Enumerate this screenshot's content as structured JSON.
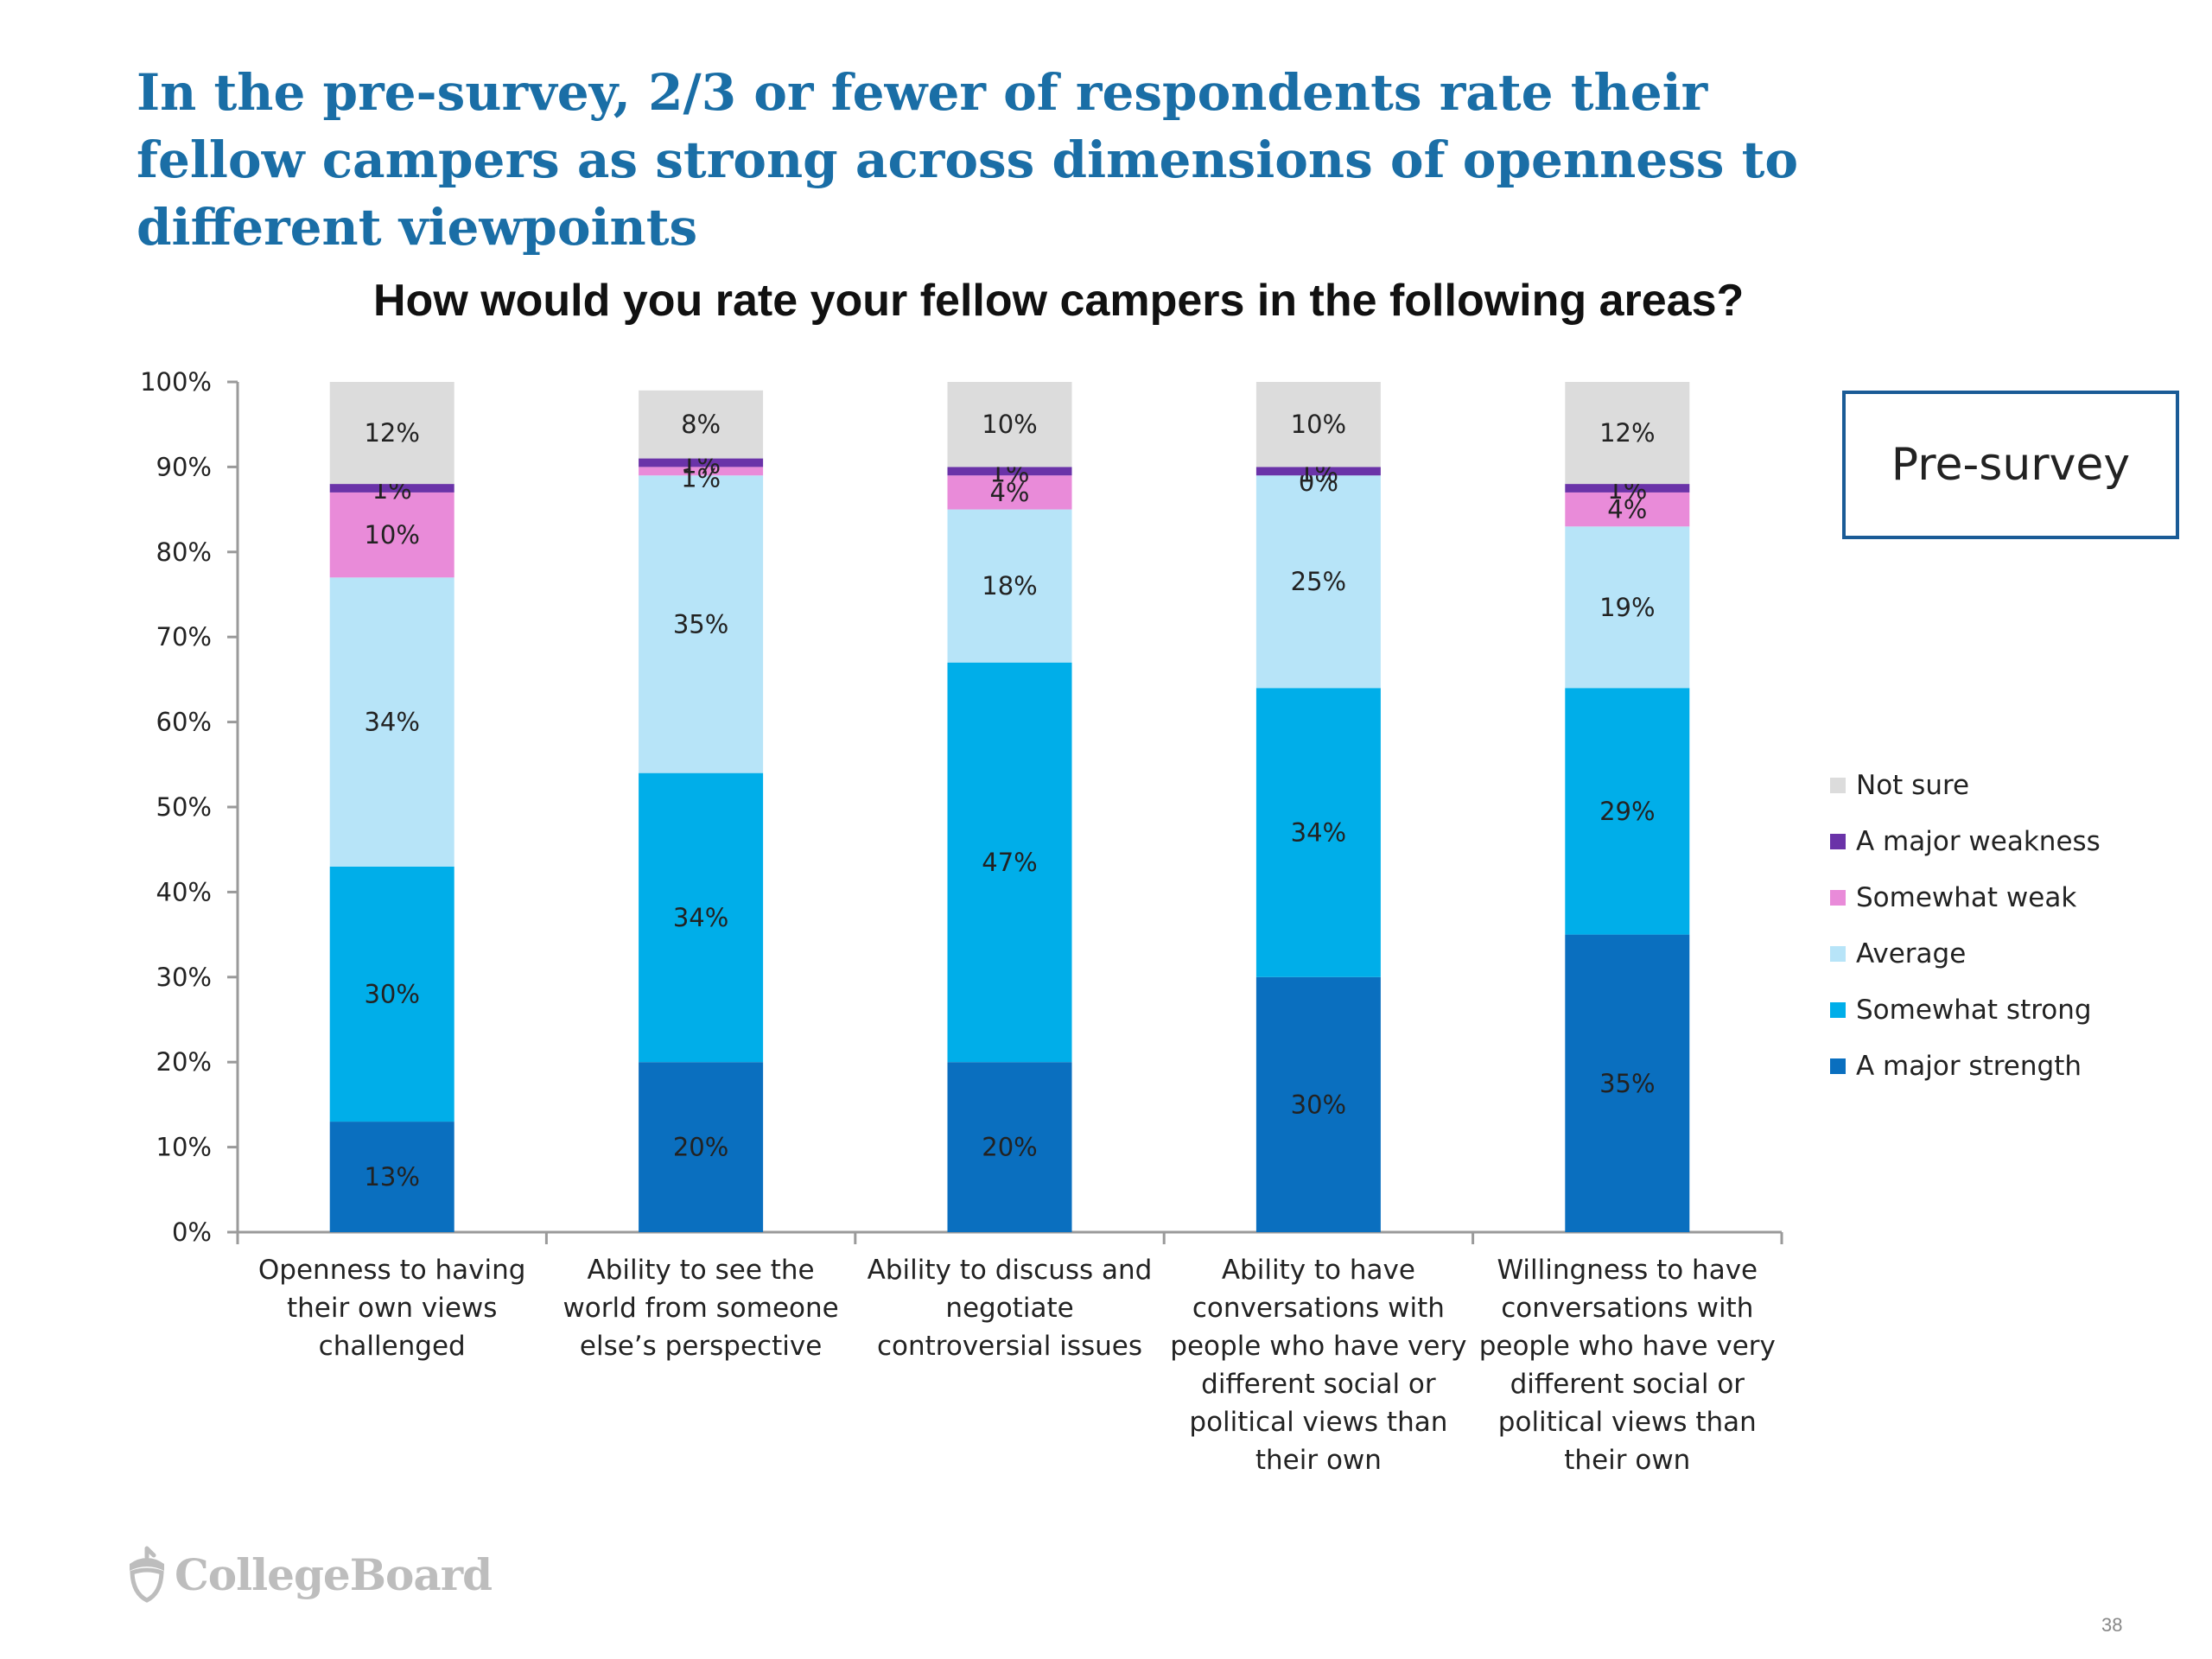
{
  "headline": "In the pre-survey, 2/3 or fewer of respondents rate their fellow campers as strong across dimensions of openness to different viewpoints",
  "badge": "Pre-survey",
  "logo": "CollegeBoard",
  "logo_icon": "acorn-icon",
  "page_number": "38",
  "chart_data": {
    "type": "bar",
    "stacked": true,
    "title": "How would you rate your fellow campers in the following areas?",
    "xlabel": "",
    "ylabel": "",
    "ylim": [
      0,
      100
    ],
    "yticks": [
      "0%",
      "10%",
      "20%",
      "30%",
      "40%",
      "50%",
      "60%",
      "70%",
      "80%",
      "90%",
      "100%"
    ],
    "legend_position": "right",
    "grid": false,
    "categories": [
      "Openness to having their own views challenged",
      "Ability to see the world from someone else’s perspective",
      "Ability to discuss and negotiate controversial issues",
      "Ability to have conversations with people who have very different social or political views than their own",
      "Willingness to have conversations with people who have very different social or political views than their own"
    ],
    "series": [
      {
        "name": "A major strength",
        "color": "#0a6fbf",
        "values": [
          13,
          20,
          20,
          30,
          35
        ],
        "labels": [
          "13%",
          "20%",
          "20%",
          "30%",
          "35%"
        ]
      },
      {
        "name": "Somewhat strong",
        "color": "#00aee9",
        "values": [
          30,
          34,
          47,
          34,
          29
        ],
        "labels": [
          "30%",
          "34%",
          "47%",
          "34%",
          "29%"
        ]
      },
      {
        "name": "Average",
        "color": "#b7e4f8",
        "values": [
          34,
          35,
          18,
          25,
          19
        ],
        "labels": [
          "34%",
          "35%",
          "18%",
          "25%",
          "19%"
        ]
      },
      {
        "name": "Somewhat weak",
        "color": "#e98bd9",
        "values": [
          10,
          1,
          4,
          0,
          4
        ],
        "labels": [
          "10%",
          "1%",
          "4%",
          "0%",
          "4%"
        ]
      },
      {
        "name": "A major weakness",
        "color": "#6a33a8",
        "values": [
          1,
          1,
          1,
          1,
          1
        ],
        "labels": [
          "1%",
          "1%",
          "1%",
          "1%",
          "1%"
        ]
      },
      {
        "name": "Not sure",
        "color": "#dcdcdc",
        "values": [
          12,
          8,
          10,
          10,
          12
        ],
        "labels": [
          "12%",
          "8%",
          "10%",
          "10%",
          "12%"
        ]
      }
    ]
  }
}
